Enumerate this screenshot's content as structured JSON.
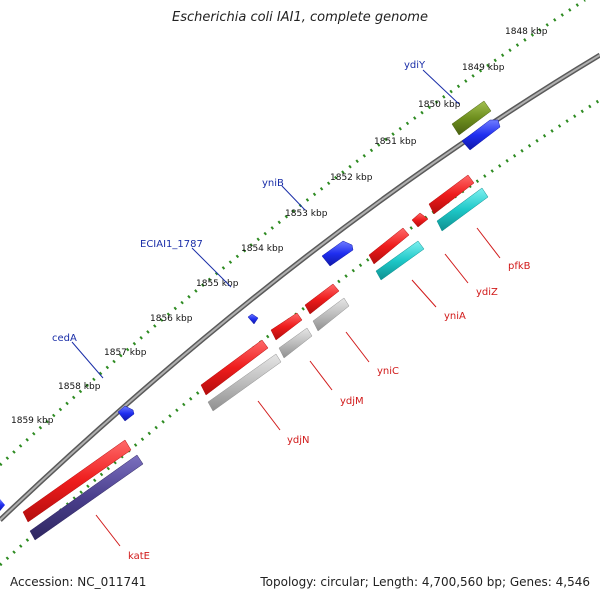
{
  "title": "Escherichia coli IAI1, complete genome",
  "footer": {
    "accession": "Accession: NC_011741",
    "topology": "Topology: circular; Length: 4,700,560 bp; Genes: 4,546"
  },
  "colors": {
    "backbone": "#8c8c8c",
    "tick_green": "#2e8b22",
    "forward_label": "#1a2ea8",
    "reverse_label": "#d11a1a",
    "gene_red": "#ee1c1c",
    "gene_grey": "#bdbdbd",
    "gene_cyan": "#1ec8c8",
    "gene_navy": "#4a3f8c",
    "gene_olive": "#6e8f1e",
    "gene_blue": "#1f2ef0"
  },
  "kbp_labels": [
    "1848 kbp",
    "1849 kbp",
    "1850 kbp",
    "1851 kbp",
    "1852 kbp",
    "1853 kbp",
    "1854 kbp",
    "1855 kbp",
    "1856 kbp",
    "1857 kbp",
    "1858 kbp",
    "1859 kbp"
  ],
  "forward_genes": [
    {
      "label": "ydiY",
      "color": "olive"
    },
    {
      "label": "yniB",
      "color": "blue"
    },
    {
      "label": "ECIAI1_1787",
      "color": "blue"
    },
    {
      "label": "cedA",
      "color": "blue"
    }
  ],
  "reverse_genes": [
    {
      "label": "pfkB",
      "color": "red"
    },
    {
      "label": "ydiZ",
      "color": "red"
    },
    {
      "label": "yniA",
      "color": "red"
    },
    {
      "label": "yniC",
      "color": "red"
    },
    {
      "label": "ydjM",
      "color": "red"
    },
    {
      "label": "ydjN",
      "color": "red"
    },
    {
      "label": "katE",
      "color": "red"
    }
  ]
}
